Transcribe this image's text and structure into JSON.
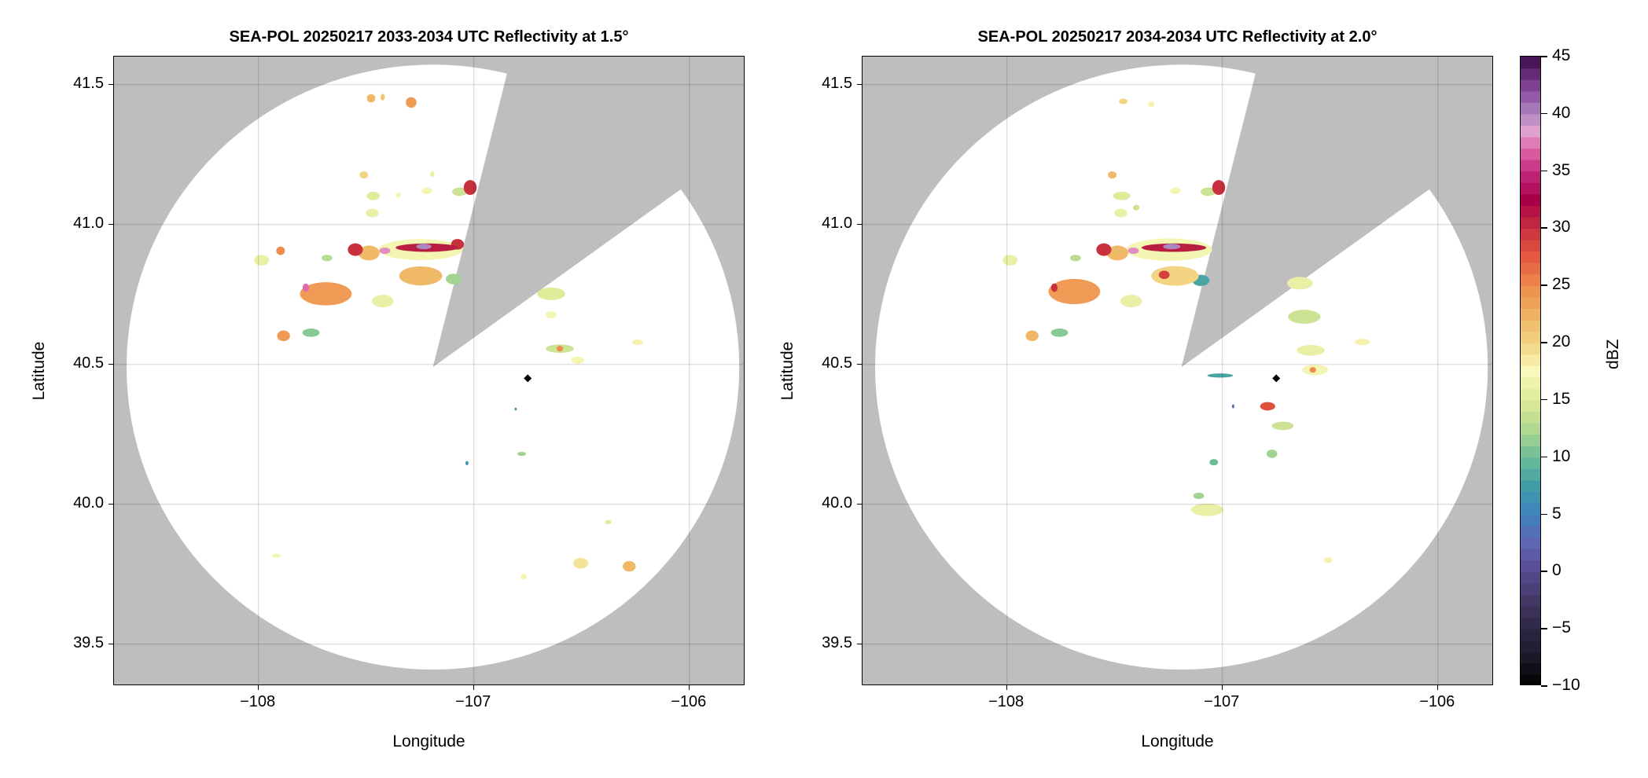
{
  "chart_data": [
    {
      "type": "heatmap",
      "title": "SEA-POL 20250217 2033-2034 UTC Reflectivity at 1.5°",
      "xlabel": "Longitude",
      "ylabel": "Latitude",
      "xlim": [
        -108.67,
        -105.74
      ],
      "ylim": [
        39.35,
        41.6
      ],
      "xticks": [
        -108,
        -107,
        -106
      ],
      "xtick_labels": [
        "−108",
        "−107",
        "−106"
      ],
      "yticks": [
        39.5,
        40.0,
        40.5,
        41.0,
        41.5
      ],
      "ytick_labels": [
        "39.5",
        "40.0",
        "40.5",
        "41.0",
        "41.5"
      ],
      "grid": true,
      "radar_location": [
        -107.19,
        40.49
      ],
      "max_range_km": 120,
      "blocked_sector_azimuth_deg": [
        14,
        54
      ],
      "marker_location": [
        -106.75,
        40.45
      ],
      "echoes_fields": [
        "lon",
        "lat",
        "lon_extent_deg",
        "lat_extent_deg",
        "dBZ"
      ],
      "echoes": [
        [
          -107.247,
          40.91,
          0.39,
          0.075,
          17
        ],
        [
          -107.218,
          40.917,
          0.29,
          0.03,
          31
        ],
        [
          -107.232,
          40.921,
          0.07,
          0.02,
          40
        ],
        [
          -107.413,
          40.906,
          0.05,
          0.023,
          38
        ],
        [
          -107.487,
          40.898,
          0.1,
          0.053,
          22
        ],
        [
          -107.55,
          40.91,
          0.07,
          0.045,
          30
        ],
        [
          -107.076,
          40.929,
          0.06,
          0.038,
          30
        ],
        [
          -107.017,
          41.132,
          0.06,
          0.053,
          30
        ],
        [
          -107.066,
          41.117,
          0.07,
          0.03,
          14
        ],
        [
          -107.687,
          40.752,
          0.24,
          0.083,
          24
        ],
        [
          -107.78,
          40.774,
          0.03,
          0.03,
          37
        ],
        [
          -107.247,
          40.816,
          0.2,
          0.068,
          22
        ],
        [
          -107.095,
          40.805,
          0.07,
          0.038,
          12
        ],
        [
          -107.423,
          40.726,
          0.1,
          0.045,
          16
        ],
        [
          -107.883,
          40.602,
          0.06,
          0.038,
          24
        ],
        [
          -107.756,
          40.613,
          0.08,
          0.03,
          11
        ],
        [
          -107.897,
          40.906,
          0.04,
          0.03,
          25
        ],
        [
          -107.985,
          40.872,
          0.07,
          0.038,
          16
        ],
        [
          -107.682,
          40.88,
          0.05,
          0.023,
          13
        ],
        [
          -107.511,
          41.177,
          0.04,
          0.026,
          20
        ],
        [
          -107.467,
          41.102,
          0.06,
          0.03,
          15
        ],
        [
          -107.472,
          41.041,
          0.06,
          0.03,
          16
        ],
        [
          -107.218,
          41.12,
          0.05,
          0.023,
          17
        ],
        [
          -107.193,
          41.18,
          0.02,
          0.02,
          16
        ],
        [
          -107.35,
          41.105,
          0.02,
          0.02,
          17
        ],
        [
          -106.641,
          40.752,
          0.13,
          0.045,
          15
        ],
        [
          -106.641,
          40.677,
          0.05,
          0.026,
          17
        ],
        [
          -106.601,
          40.556,
          0.13,
          0.03,
          14
        ],
        [
          -106.601,
          40.556,
          0.03,
          0.02,
          25
        ],
        [
          -106.518,
          40.515,
          0.06,
          0.026,
          17
        ],
        [
          -106.24,
          40.579,
          0.05,
          0.02,
          18
        ],
        [
          -107.477,
          41.451,
          0.04,
          0.03,
          22
        ],
        [
          -107.423,
          41.455,
          0.02,
          0.023,
          21
        ],
        [
          -107.291,
          41.436,
          0.05,
          0.038,
          24
        ],
        [
          -106.778,
          40.18,
          0.04,
          0.015,
          12
        ],
        [
          -107.032,
          40.147,
          0.015,
          0.015,
          7
        ],
        [
          -106.806,
          40.34,
          0.01,
          0.01,
          7
        ],
        [
          -106.377,
          39.936,
          0.03,
          0.015,
          15
        ],
        [
          -106.504,
          39.789,
          0.07,
          0.038,
          19
        ],
        [
          -106.279,
          39.778,
          0.06,
          0.038,
          22
        ],
        [
          -106.768,
          39.741,
          0.03,
          0.02,
          17
        ],
        [
          -107.917,
          39.816,
          0.04,
          0.015,
          17
        ]
      ]
    },
    {
      "type": "heatmap",
      "title": "SEA-POL 20250217 2034-2034 UTC Reflectivity at 2.0°",
      "xlabel": "Longitude",
      "ylabel": "Latitude",
      "xlim": [
        -108.67,
        -105.74
      ],
      "ylim": [
        39.35,
        41.6
      ],
      "xticks": [
        -108,
        -107,
        -106
      ],
      "xtick_labels": [
        "−108",
        "−107",
        "−106"
      ],
      "yticks": [
        39.5,
        40.0,
        40.5,
        41.0,
        41.5
      ],
      "ytick_labels": [
        "39.5",
        "40.0",
        "40.5",
        "41.0",
        "41.5"
      ],
      "grid": true,
      "radar_location": [
        -107.19,
        40.49
      ],
      "max_range_km": 120,
      "blocked_sector_azimuth_deg": [
        14,
        54
      ],
      "marker_location": [
        -106.75,
        40.45
      ],
      "echoes_fields": [
        "lon",
        "lat",
        "lon_extent_deg",
        "lat_extent_deg",
        "dBZ"
      ],
      "echoes": [
        [
          -107.247,
          40.91,
          0.4,
          0.08,
          17
        ],
        [
          -107.225,
          40.917,
          0.3,
          0.03,
          31
        ],
        [
          -107.235,
          40.921,
          0.08,
          0.02,
          40
        ],
        [
          -107.413,
          40.906,
          0.05,
          0.023,
          38
        ],
        [
          -107.487,
          40.898,
          0.1,
          0.053,
          22
        ],
        [
          -107.55,
          40.91,
          0.07,
          0.045,
          30
        ],
        [
          -107.017,
          41.132,
          0.06,
          0.053,
          30
        ],
        [
          -107.066,
          41.117,
          0.07,
          0.03,
          14
        ],
        [
          -107.687,
          40.76,
          0.24,
          0.09,
          24
        ],
        [
          -107.78,
          40.774,
          0.03,
          0.03,
          30
        ],
        [
          -107.22,
          40.816,
          0.22,
          0.07,
          20
        ],
        [
          -107.27,
          40.82,
          0.05,
          0.03,
          29
        ],
        [
          -107.1,
          40.8,
          0.08,
          0.04,
          8
        ],
        [
          -107.423,
          40.726,
          0.1,
          0.045,
          16
        ],
        [
          -107.883,
          40.602,
          0.06,
          0.038,
          22
        ],
        [
          -107.756,
          40.613,
          0.08,
          0.03,
          11
        ],
        [
          -107.985,
          40.872,
          0.07,
          0.038,
          16
        ],
        [
          -107.682,
          40.88,
          0.05,
          0.023,
          13
        ],
        [
          -107.511,
          41.177,
          0.04,
          0.026,
          22
        ],
        [
          -107.467,
          41.102,
          0.08,
          0.03,
          15
        ],
        [
          -107.472,
          41.041,
          0.06,
          0.03,
          16
        ],
        [
          -107.218,
          41.12,
          0.05,
          0.023,
          17
        ],
        [
          -107.4,
          41.06,
          0.03,
          0.02,
          14
        ],
        [
          -106.64,
          40.79,
          0.12,
          0.045,
          16
        ],
        [
          -106.62,
          40.67,
          0.15,
          0.05,
          14
        ],
        [
          -106.59,
          40.55,
          0.13,
          0.038,
          16
        ],
        [
          -106.57,
          40.48,
          0.12,
          0.038,
          17
        ],
        [
          -106.58,
          40.48,
          0.03,
          0.02,
          25
        ],
        [
          -106.35,
          40.58,
          0.07,
          0.023,
          18
        ],
        [
          -107.01,
          40.46,
          0.12,
          0.015,
          8
        ],
        [
          -106.95,
          40.35,
          0.01,
          0.015,
          3
        ],
        [
          -106.79,
          40.35,
          0.07,
          0.03,
          28
        ],
        [
          -106.72,
          40.28,
          0.1,
          0.03,
          14
        ],
        [
          -106.77,
          40.18,
          0.05,
          0.03,
          12
        ],
        [
          -107.04,
          40.15,
          0.04,
          0.023,
          10
        ],
        [
          -107.11,
          40.03,
          0.05,
          0.023,
          12
        ],
        [
          -107.07,
          39.98,
          0.15,
          0.045,
          16
        ],
        [
          -106.51,
          39.8,
          0.04,
          0.02,
          18
        ],
        [
          -107.46,
          41.44,
          0.04,
          0.02,
          20
        ],
        [
          -107.33,
          41.43,
          0.03,
          0.02,
          18
        ]
      ]
    }
  ],
  "colorbar": {
    "label": "dBZ",
    "range": [
      -10,
      45
    ],
    "step": 1,
    "ticks": [
      -10,
      -5,
      0,
      5,
      10,
      15,
      20,
      25,
      30,
      35,
      40,
      45
    ],
    "tick_labels": [
      "−10",
      "−5",
      "0",
      "5",
      "10",
      "15",
      "20",
      "25",
      "30",
      "35",
      "40",
      "45"
    ],
    "colormap_stops": [
      [
        -10,
        "#000000"
      ],
      [
        -7.5,
        "#1c1828"
      ],
      [
        -5,
        "#2e2644"
      ],
      [
        -2.5,
        "#433866"
      ],
      [
        0,
        "#574990"
      ],
      [
        2.5,
        "#5e66b2"
      ],
      [
        5,
        "#3f82be"
      ],
      [
        7.5,
        "#409ea6"
      ],
      [
        10,
        "#6cbd97"
      ],
      [
        12.5,
        "#b0d890"
      ],
      [
        15,
        "#dfeb98"
      ],
      [
        17.5,
        "#f8f8ba"
      ],
      [
        20,
        "#f2d482"
      ],
      [
        22.5,
        "#eeb262"
      ],
      [
        25,
        "#ef8b4c"
      ],
      [
        27.5,
        "#e4593f"
      ],
      [
        30,
        "#c8303e"
      ],
      [
        32.5,
        "#a60048"
      ],
      [
        35,
        "#c42b7e"
      ],
      [
        37,
        "#e06aa8"
      ],
      [
        38.5,
        "#e0a0d0"
      ],
      [
        40,
        "#ae86c0"
      ],
      [
        42,
        "#8a4c9e"
      ],
      [
        45,
        "#3c0a4a"
      ]
    ]
  },
  "colors": {
    "blocked": "#bebebe",
    "coverage": "#ffffff",
    "grid": "#d4d4d4",
    "marker": "#000000"
  }
}
